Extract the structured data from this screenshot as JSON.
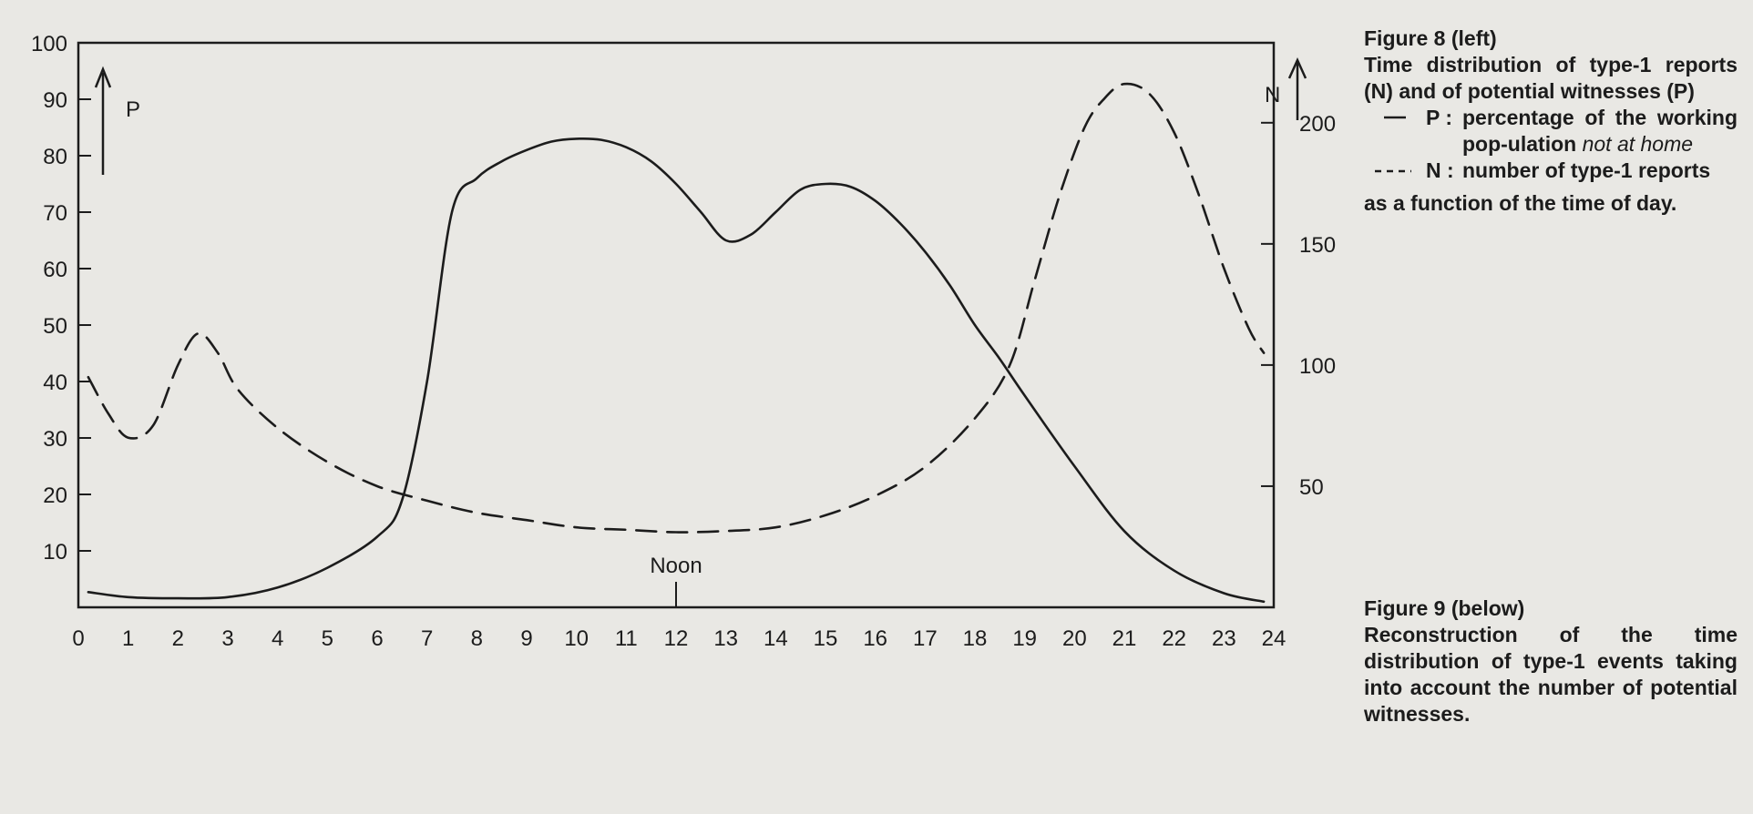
{
  "chart_data": {
    "type": "line",
    "x_axis": {
      "range": [
        0,
        24
      ],
      "tick_labels": [
        "0",
        "1",
        "2",
        "3",
        "4",
        "5",
        "6",
        "7",
        "8",
        "9",
        "10",
        "11",
        "12",
        "13",
        "14",
        "15",
        "16",
        "17",
        "18",
        "19",
        "20",
        "21",
        "22",
        "23",
        "24"
      ],
      "annotation": "Noon"
    },
    "left_axis": {
      "label": "P",
      "range": [
        0,
        100
      ],
      "tick_labels": [
        "10",
        "20",
        "30",
        "40",
        "50",
        "60",
        "70",
        "80",
        "90",
        "100"
      ]
    },
    "right_axis": {
      "label": "N",
      "range": [
        0,
        233
      ],
      "tick_labels": [
        "50",
        "100",
        "150",
        "200"
      ]
    },
    "series": [
      {
        "name": "P",
        "axis": "left",
        "style": "solid",
        "x": [
          0.2,
          1,
          2,
          3,
          4,
          5,
          6,
          6.5,
          7,
          7.5,
          8,
          8.5,
          9,
          9.5,
          10,
          10.5,
          11,
          11.5,
          12,
          12.5,
          13,
          13.5,
          14,
          14.5,
          15,
          15.5,
          16,
          16.5,
          17,
          17.5,
          18,
          18.5,
          19,
          20,
          21,
          22,
          23,
          23.8
        ],
        "y": [
          2.7,
          1.8,
          1.6,
          1.8,
          3.5,
          7,
          12.5,
          19,
          40,
          70,
          76,
          79,
          81,
          82.5,
          83,
          82.8,
          81.5,
          79,
          75,
          70,
          65,
          66,
          70,
          74,
          75,
          74.5,
          72,
          68,
          63,
          57,
          50,
          44,
          37.5,
          25,
          13.5,
          6.5,
          2.5,
          1
        ]
      },
      {
        "name": "N",
        "axis": "right",
        "style": "dashed",
        "x": [
          0.2,
          0.6,
          1,
          1.5,
          2,
          2.4,
          2.8,
          3.2,
          4,
          5,
          6,
          7,
          8,
          9,
          10,
          11,
          12,
          13,
          14,
          15,
          16,
          17,
          18,
          18.7,
          19.2,
          19.7,
          20.2,
          20.6,
          21,
          21.5,
          22,
          22.5,
          23,
          23.5,
          23.8
        ],
        "y": [
          95,
          80,
          70,
          75,
          100,
          113,
          105,
          90,
          74,
          60,
          50,
          44,
          39,
          36,
          33,
          32,
          31,
          31.5,
          33,
          38,
          46,
          58,
          78,
          100,
          135,
          170,
          198,
          210,
          216,
          212,
          196,
          170,
          140,
          115,
          105
        ]
      }
    ]
  },
  "captions": {
    "fig8": {
      "title": "Figure 8 (left)",
      "text": "Time distribution of type-1 reports (N) and of potential witnesses (P)",
      "legend": [
        {
          "key": "P",
          "sep": ":",
          "description": "percentage of the working pop-ulation",
          "emphasis": "not at home"
        },
        {
          "key": "N",
          "sep": ":",
          "description": "number of type-1 reports",
          "emphasis": ""
        }
      ],
      "footer": "as a function of the time of day."
    },
    "fig9": {
      "title": "Figure 9 (below)",
      "text": "Reconstruction of the time distribution of type-1 events taking into account the number of potential witnesses."
    }
  },
  "colors": {
    "background": "#e9e8e4",
    "ink": "#1c1c1c"
  }
}
